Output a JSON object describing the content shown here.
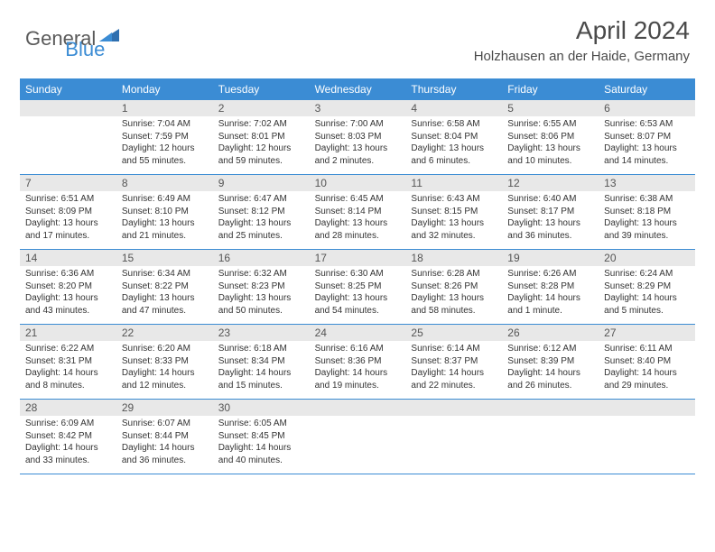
{
  "logo": {
    "text1": "General",
    "text2": "Blue"
  },
  "header": {
    "title": "April 2024",
    "location": "Holzhausen an der Haide, Germany"
  },
  "colors": {
    "accent": "#3b8cd4",
    "daynum_bg": "#e8e8e8",
    "text": "#4a4a4a",
    "body_text": "#333333"
  },
  "weekdays": [
    "Sunday",
    "Monday",
    "Tuesday",
    "Wednesday",
    "Thursday",
    "Friday",
    "Saturday"
  ],
  "weeks": [
    [
      {
        "day": "",
        "sunrise": "",
        "sunset": "",
        "daylight1": "",
        "daylight2": ""
      },
      {
        "day": "1",
        "sunrise": "Sunrise: 7:04 AM",
        "sunset": "Sunset: 7:59 PM",
        "daylight1": "Daylight: 12 hours",
        "daylight2": "and 55 minutes."
      },
      {
        "day": "2",
        "sunrise": "Sunrise: 7:02 AM",
        "sunset": "Sunset: 8:01 PM",
        "daylight1": "Daylight: 12 hours",
        "daylight2": "and 59 minutes."
      },
      {
        "day": "3",
        "sunrise": "Sunrise: 7:00 AM",
        "sunset": "Sunset: 8:03 PM",
        "daylight1": "Daylight: 13 hours",
        "daylight2": "and 2 minutes."
      },
      {
        "day": "4",
        "sunrise": "Sunrise: 6:58 AM",
        "sunset": "Sunset: 8:04 PM",
        "daylight1": "Daylight: 13 hours",
        "daylight2": "and 6 minutes."
      },
      {
        "day": "5",
        "sunrise": "Sunrise: 6:55 AM",
        "sunset": "Sunset: 8:06 PM",
        "daylight1": "Daylight: 13 hours",
        "daylight2": "and 10 minutes."
      },
      {
        "day": "6",
        "sunrise": "Sunrise: 6:53 AM",
        "sunset": "Sunset: 8:07 PM",
        "daylight1": "Daylight: 13 hours",
        "daylight2": "and 14 minutes."
      }
    ],
    [
      {
        "day": "7",
        "sunrise": "Sunrise: 6:51 AM",
        "sunset": "Sunset: 8:09 PM",
        "daylight1": "Daylight: 13 hours",
        "daylight2": "and 17 minutes."
      },
      {
        "day": "8",
        "sunrise": "Sunrise: 6:49 AM",
        "sunset": "Sunset: 8:10 PM",
        "daylight1": "Daylight: 13 hours",
        "daylight2": "and 21 minutes."
      },
      {
        "day": "9",
        "sunrise": "Sunrise: 6:47 AM",
        "sunset": "Sunset: 8:12 PM",
        "daylight1": "Daylight: 13 hours",
        "daylight2": "and 25 minutes."
      },
      {
        "day": "10",
        "sunrise": "Sunrise: 6:45 AM",
        "sunset": "Sunset: 8:14 PM",
        "daylight1": "Daylight: 13 hours",
        "daylight2": "and 28 minutes."
      },
      {
        "day": "11",
        "sunrise": "Sunrise: 6:43 AM",
        "sunset": "Sunset: 8:15 PM",
        "daylight1": "Daylight: 13 hours",
        "daylight2": "and 32 minutes."
      },
      {
        "day": "12",
        "sunrise": "Sunrise: 6:40 AM",
        "sunset": "Sunset: 8:17 PM",
        "daylight1": "Daylight: 13 hours",
        "daylight2": "and 36 minutes."
      },
      {
        "day": "13",
        "sunrise": "Sunrise: 6:38 AM",
        "sunset": "Sunset: 8:18 PM",
        "daylight1": "Daylight: 13 hours",
        "daylight2": "and 39 minutes."
      }
    ],
    [
      {
        "day": "14",
        "sunrise": "Sunrise: 6:36 AM",
        "sunset": "Sunset: 8:20 PM",
        "daylight1": "Daylight: 13 hours",
        "daylight2": "and 43 minutes."
      },
      {
        "day": "15",
        "sunrise": "Sunrise: 6:34 AM",
        "sunset": "Sunset: 8:22 PM",
        "daylight1": "Daylight: 13 hours",
        "daylight2": "and 47 minutes."
      },
      {
        "day": "16",
        "sunrise": "Sunrise: 6:32 AM",
        "sunset": "Sunset: 8:23 PM",
        "daylight1": "Daylight: 13 hours",
        "daylight2": "and 50 minutes."
      },
      {
        "day": "17",
        "sunrise": "Sunrise: 6:30 AM",
        "sunset": "Sunset: 8:25 PM",
        "daylight1": "Daylight: 13 hours",
        "daylight2": "and 54 minutes."
      },
      {
        "day": "18",
        "sunrise": "Sunrise: 6:28 AM",
        "sunset": "Sunset: 8:26 PM",
        "daylight1": "Daylight: 13 hours",
        "daylight2": "and 58 minutes."
      },
      {
        "day": "19",
        "sunrise": "Sunrise: 6:26 AM",
        "sunset": "Sunset: 8:28 PM",
        "daylight1": "Daylight: 14 hours",
        "daylight2": "and 1 minute."
      },
      {
        "day": "20",
        "sunrise": "Sunrise: 6:24 AM",
        "sunset": "Sunset: 8:29 PM",
        "daylight1": "Daylight: 14 hours",
        "daylight2": "and 5 minutes."
      }
    ],
    [
      {
        "day": "21",
        "sunrise": "Sunrise: 6:22 AM",
        "sunset": "Sunset: 8:31 PM",
        "daylight1": "Daylight: 14 hours",
        "daylight2": "and 8 minutes."
      },
      {
        "day": "22",
        "sunrise": "Sunrise: 6:20 AM",
        "sunset": "Sunset: 8:33 PM",
        "daylight1": "Daylight: 14 hours",
        "daylight2": "and 12 minutes."
      },
      {
        "day": "23",
        "sunrise": "Sunrise: 6:18 AM",
        "sunset": "Sunset: 8:34 PM",
        "daylight1": "Daylight: 14 hours",
        "daylight2": "and 15 minutes."
      },
      {
        "day": "24",
        "sunrise": "Sunrise: 6:16 AM",
        "sunset": "Sunset: 8:36 PM",
        "daylight1": "Daylight: 14 hours",
        "daylight2": "and 19 minutes."
      },
      {
        "day": "25",
        "sunrise": "Sunrise: 6:14 AM",
        "sunset": "Sunset: 8:37 PM",
        "daylight1": "Daylight: 14 hours",
        "daylight2": "and 22 minutes."
      },
      {
        "day": "26",
        "sunrise": "Sunrise: 6:12 AM",
        "sunset": "Sunset: 8:39 PM",
        "daylight1": "Daylight: 14 hours",
        "daylight2": "and 26 minutes."
      },
      {
        "day": "27",
        "sunrise": "Sunrise: 6:11 AM",
        "sunset": "Sunset: 8:40 PM",
        "daylight1": "Daylight: 14 hours",
        "daylight2": "and 29 minutes."
      }
    ],
    [
      {
        "day": "28",
        "sunrise": "Sunrise: 6:09 AM",
        "sunset": "Sunset: 8:42 PM",
        "daylight1": "Daylight: 14 hours",
        "daylight2": "and 33 minutes."
      },
      {
        "day": "29",
        "sunrise": "Sunrise: 6:07 AM",
        "sunset": "Sunset: 8:44 PM",
        "daylight1": "Daylight: 14 hours",
        "daylight2": "and 36 minutes."
      },
      {
        "day": "30",
        "sunrise": "Sunrise: 6:05 AM",
        "sunset": "Sunset: 8:45 PM",
        "daylight1": "Daylight: 14 hours",
        "daylight2": "and 40 minutes."
      },
      {
        "day": "",
        "sunrise": "",
        "sunset": "",
        "daylight1": "",
        "daylight2": ""
      },
      {
        "day": "",
        "sunrise": "",
        "sunset": "",
        "daylight1": "",
        "daylight2": ""
      },
      {
        "day": "",
        "sunrise": "",
        "sunset": "",
        "daylight1": "",
        "daylight2": ""
      },
      {
        "day": "",
        "sunrise": "",
        "sunset": "",
        "daylight1": "",
        "daylight2": ""
      }
    ]
  ]
}
